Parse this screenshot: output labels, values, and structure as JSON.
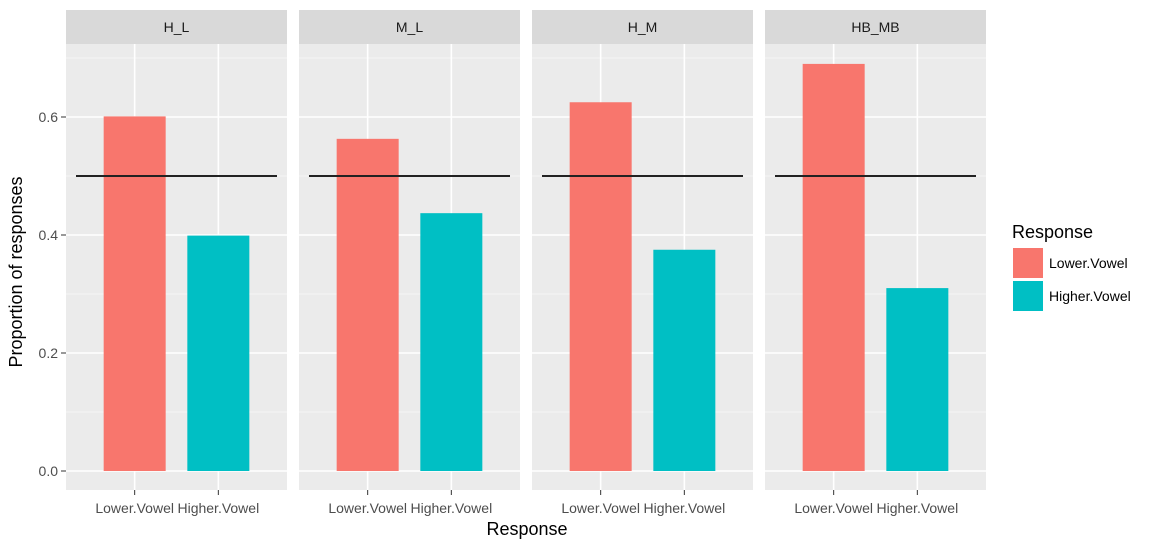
{
  "chart_data": {
    "type": "bar",
    "categories": [
      "Lower.Vowel",
      "Higher.Vowel"
    ],
    "facets": [
      {
        "label": "H_L",
        "values": [
          0.601,
          0.399
        ]
      },
      {
        "label": "M_L",
        "values": [
          0.563,
          0.437
        ]
      },
      {
        "label": "H_M",
        "values": [
          0.625,
          0.375
        ]
      },
      {
        "label": "HB_MB",
        "values": [
          0.69,
          0.31
        ]
      }
    ],
    "series_colors": [
      "#F8766D",
      "#00BFC4"
    ],
    "reference_line": 0.5,
    "xlabel": "Response",
    "ylabel": "Proportion of responses",
    "ylim": [
      0,
      0.72
    ],
    "yticks": [
      0.0,
      0.2,
      0.4,
      0.6
    ],
    "ytick_labels": [
      "0.0",
      "0.2",
      "0.4",
      "0.6"
    ],
    "grid": true,
    "legend": {
      "title": "Response",
      "placement": "right",
      "entries": [
        "Lower.Vowel",
        "Higher.Vowel"
      ]
    }
  }
}
